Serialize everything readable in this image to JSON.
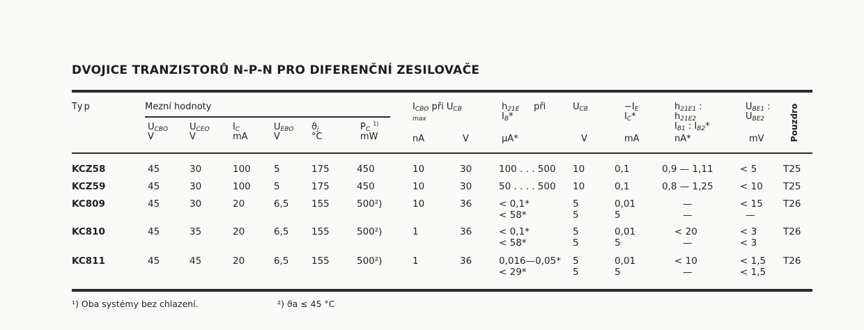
{
  "title": "DVOJICE TRANZISTORŮ N-P-N PRO DIFERENČNÍ ZESILOVAČE",
  "header": {
    "typ": "Typ",
    "limits": "Mezní hodnoty",
    "cols": [
      {
        "m": "U",
        "s": "CBO",
        "unit": "V"
      },
      {
        "m": "U",
        "s": "CEO",
        "unit": "V"
      },
      {
        "m": "I",
        "s": "C",
        "unit": "mA"
      },
      {
        "m": "U",
        "s": "EBO",
        "unit": "V"
      },
      {
        "m": "ϑ",
        "s": "j",
        "unit": "°C"
      },
      {
        "m": "P",
        "s": "C",
        "sup": "1)",
        "unit": "mW"
      }
    ],
    "icbo": {
      "m": "I",
      "s": "CBO",
      "rest": "při",
      "ucb_m": "U",
      "ucb_s": "CB",
      "max": "max",
      "unit1": "nA",
      "unit2": "V"
    },
    "h21e": {
      "m": "h",
      "s": "21E",
      "pri": "při",
      "ib_m": "I",
      "ib_s": "B",
      "ib_star": "*",
      "unit": "μA*"
    },
    "ucb": {
      "m": "U",
      "s": "CB",
      "unit": "V"
    },
    "ie": {
      "m": "−I",
      "s": "E",
      "ic_m": "I",
      "ic_s": "C",
      "star": "*",
      "unit": "mA"
    },
    "ratio": {
      "l1m": "h",
      "l1s": "21E1",
      "colon": ":",
      "l2m": "h",
      "l2s": "21E2",
      "l3": "I",
      "l3s1": "B1",
      "l3c": ":",
      "l3b": "I",
      "l3s2": "B2",
      "star": "*",
      "unit": "nA*"
    },
    "ube": {
      "l1m": "U",
      "l1s": "BE1",
      "colon": ":",
      "l2m": "U",
      "l2s": "BE2",
      "unit": "mV"
    },
    "pouzdro": "Pouzdro"
  },
  "rows": [
    {
      "typ": "KCZ58",
      "v": [
        "45",
        "30",
        "100",
        "5",
        "175",
        "450",
        "10",
        "30"
      ],
      "h21": [
        "100 . . . 500"
      ],
      "ucb": [
        "10"
      ],
      "ie": [
        "0,1"
      ],
      "ratio": [
        "0,9 — 1,11"
      ],
      "ube": [
        "< 5"
      ],
      "case": "T25"
    },
    {
      "typ": "KCZ59",
      "v": [
        "45",
        "30",
        "100",
        "5",
        "175",
        "450",
        "10",
        "30"
      ],
      "h21": [
        "50 . . . . 500"
      ],
      "ucb": [
        "10"
      ],
      "ie": [
        "0,1"
      ],
      "ratio": [
        "0,8 — 1,25"
      ],
      "ube": [
        "< 10"
      ],
      "case": "T25"
    },
    {
      "typ": "KC809",
      "v": [
        "45",
        "30",
        "20",
        "6,5",
        "155",
        "500²)",
        "10",
        "36"
      ],
      "h21": [
        "< 0,1*",
        "< 58*"
      ],
      "ucb": [
        "5",
        "5"
      ],
      "ie": [
        "0,01",
        "5"
      ],
      "ratio": [
        "—",
        "—"
      ],
      "ube": [
        "< 15",
        "—"
      ],
      "case": "T26"
    },
    {
      "typ": "KC810",
      "v": [
        "45",
        "35",
        "20",
        "6,5",
        "155",
        "500²)",
        "1",
        "36"
      ],
      "h21": [
        "< 0,1*",
        "< 58*"
      ],
      "ucb": [
        "5",
        "5"
      ],
      "ie": [
        "0,01",
        "5"
      ],
      "ratio": [
        "< 20",
        "—"
      ],
      "ube": [
        "< 3",
        "< 3"
      ],
      "case": "T26"
    },
    {
      "typ": "KC811",
      "v": [
        "45",
        "45",
        "20",
        "6,5",
        "155",
        "500²)",
        "1",
        "36"
      ],
      "h21": [
        "0,016—0,05*",
        "< 29*"
      ],
      "ucb": [
        "5",
        "5"
      ],
      "ie": [
        "0,01",
        "5"
      ],
      "ratio": [
        "< 10",
        "—"
      ],
      "ube": [
        "< 1,5",
        "< 1,5"
      ],
      "case": "T26"
    }
  ],
  "footnotes": [
    "¹) Oba systémy bez chlazení.",
    "²) ϑa ≤ 45 °C"
  ]
}
